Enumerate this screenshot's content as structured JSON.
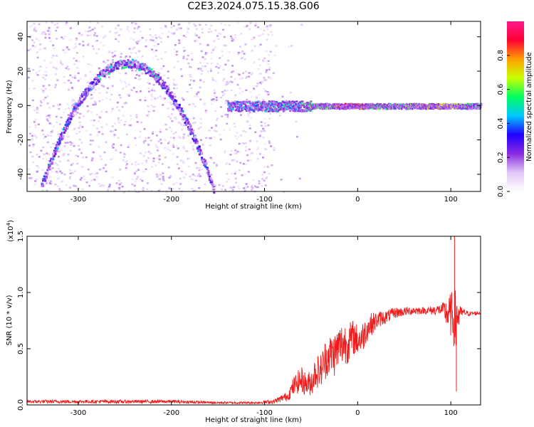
{
  "title": "C2E3.2024.075.15.38.G06",
  "colors": {
    "spectrogram_low": "#c9a8f5",
    "spectrogram_mid": "#6a00e0",
    "snr_line": "#ee1c1c",
    "axis": "#000000"
  },
  "chart_data": [
    {
      "type": "heatmap",
      "xlabel": "Height of straight line (km)",
      "ylabel": "Frequency (Hz)",
      "xlim": [
        -355,
        132
      ],
      "ylim": [
        -50,
        49
      ],
      "xticks": [
        -300,
        -200,
        -100,
        0,
        100
      ],
      "xtick_labels": [
        "-300",
        "-200",
        "-100",
        "0",
        "100"
      ],
      "yticks": [
        -40,
        -20,
        0,
        20,
        40
      ],
      "ytick_labels": [
        "-40",
        "-20",
        "0",
        "20",
        "40"
      ],
      "colorbar": {
        "label": "Normalized spectral amplitude",
        "range": [
          0.0,
          1.0
        ],
        "ticks": [
          0.0,
          0.2,
          0.4,
          0.6,
          0.8
        ],
        "tick_labels": [
          "0.0",
          "0.2",
          "0.4",
          "0.6",
          "0.8"
        ],
        "colormap": [
          "#ffffff",
          "#e2c8f7",
          "#8a2be2",
          "#2200ff",
          "#00c8ff",
          "#00ff60",
          "#c8ff00",
          "#ffa000",
          "#ff0033",
          "#ff1a8c"
        ]
      },
      "features": {
        "arc_branch": {
          "x_range": [
            -340,
            -155
          ],
          "peak_x": -248,
          "peak_y": 25,
          "end_y": -48
        },
        "near_zero_band": {
          "x_range": [
            -140,
            132
          ],
          "y": 0
        },
        "noise_region_x": [
          -355,
          -90
        ]
      }
    },
    {
      "type": "line",
      "xlabel": "Height of straight line (km)",
      "ylabel": "SNR (10 * v/v)",
      "multiplier_label": "(x10",
      "multiplier_exp": "4",
      "multiplier_close": ")",
      "xlim": [
        -355,
        132
      ],
      "ylim": [
        0.0,
        1.5
      ],
      "xticks": [
        -300,
        -200,
        -100,
        0,
        100
      ],
      "xtick_labels": [
        "-300",
        "-200",
        "-100",
        "0",
        "100"
      ],
      "yticks": [
        0.0,
        0.5,
        1.0,
        1.5
      ],
      "ytick_labels": [
        "0.0",
        "0.5",
        "1.0",
        "1.5"
      ],
      "series": [
        {
          "x": [
            -355,
            -300,
            -250,
            -200,
            -150,
            -110,
            -90,
            -75,
            -70,
            -65,
            -60,
            -55,
            -50,
            -45,
            -40,
            -35,
            -30,
            -25,
            -20,
            -15,
            -10,
            -5,
            0,
            5,
            10,
            15,
            20,
            25,
            30,
            40,
            50,
            60,
            70,
            80,
            90,
            95,
            100,
            103,
            105,
            107,
            110,
            115,
            120,
            132
          ],
          "y": [
            0.03,
            0.03,
            0.03,
            0.03,
            0.02,
            0.02,
            0.03,
            0.08,
            0.15,
            0.2,
            0.22,
            0.18,
            0.2,
            0.3,
            0.3,
            0.4,
            0.45,
            0.45,
            0.52,
            0.55,
            0.55,
            0.6,
            0.58,
            0.6,
            0.68,
            0.72,
            0.75,
            0.77,
            0.78,
            0.82,
            0.83,
            0.84,
            0.84,
            0.84,
            0.85,
            0.82,
            0.8,
            0.78,
            0.7,
            0.8,
            0.82,
            0.82,
            0.81,
            0.82
          ],
          "noise_amplitude": [
            0.015,
            0.015,
            0.015,
            0.015,
            0.01,
            0.01,
            0.02,
            0.04,
            0.08,
            0.1,
            0.12,
            0.1,
            0.12,
            0.15,
            0.15,
            0.18,
            0.18,
            0.2,
            0.2,
            0.2,
            0.18,
            0.16,
            0.14,
            0.14,
            0.12,
            0.1,
            0.08,
            0.07,
            0.06,
            0.05,
            0.04,
            0.04,
            0.03,
            0.04,
            0.05,
            0.12,
            0.2,
            0.25,
            0.35,
            0.25,
            0.06,
            0.03,
            0.02,
            0.02
          ]
        }
      ],
      "spikes": [
        {
          "x": 104,
          "y": 1.5
        },
        {
          "x": 106,
          "y": 0.12
        }
      ]
    }
  ]
}
